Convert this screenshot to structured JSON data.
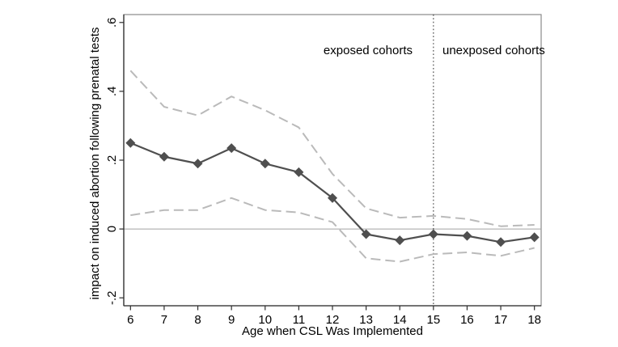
{
  "chart_data": {
    "type": "line",
    "title": "",
    "xlabel": "Age when CSL Was Implemented",
    "ylabel": "impact on induced abortion following prenatal tests",
    "x": [
      6,
      7,
      8,
      9,
      10,
      11,
      12,
      13,
      14,
      15,
      16,
      17,
      18
    ],
    "x_tick_labels": [
      "6",
      "7",
      "8",
      "9",
      "10",
      "11",
      "12",
      "13",
      "14",
      "15",
      "16",
      "17",
      "18"
    ],
    "y_ticks": {
      "labels": [
        ".6",
        ".4",
        ".2",
        "0",
        "-.2"
      ],
      "values": [
        0.6,
        0.4,
        0.2,
        0,
        -0.2
      ]
    },
    "xlim": [
      5.8,
      18.2
    ],
    "ylim": [
      -0.223,
      0.623
    ],
    "grid": false,
    "legend": "none",
    "series": [
      {
        "name": "point-estimate",
        "line": "solid",
        "marker": "diamond",
        "color": "#4f4f4f",
        "values": [
          0.25,
          0.21,
          0.19,
          0.235,
          0.19,
          0.165,
          0.09,
          -0.015,
          -0.033,
          -0.015,
          -0.02,
          -0.038,
          -0.024
        ]
      },
      {
        "name": "upper-confidence-bound",
        "line": "dashed",
        "marker": "none",
        "color": "#bababa",
        "values": [
          0.46,
          0.355,
          0.33,
          0.385,
          0.345,
          0.295,
          0.16,
          0.06,
          0.033,
          0.038,
          0.029,
          0.008,
          0.012
        ]
      },
      {
        "name": "lower-confidence-bound",
        "line": "dashed",
        "marker": "none",
        "color": "#bababa",
        "values": [
          0.04,
          0.055,
          0.055,
          0.09,
          0.055,
          0.048,
          0.02,
          -0.085,
          -0.095,
          -0.073,
          -0.068,
          -0.078,
          -0.055
        ]
      }
    ],
    "reference_lines": [
      {
        "type": "horizontal",
        "value": 0,
        "style": "solid",
        "color": "#a3a3a3"
      },
      {
        "type": "vertical",
        "value": 15,
        "style": "dotted",
        "color": "#3c3c3c"
      }
    ],
    "annotations": [
      {
        "text": "exposed cohorts",
        "x": 14.35,
        "y": 0.52,
        "align": "right"
      },
      {
        "text": "unexposed cohorts",
        "x": 15.25,
        "y": 0.52,
        "align": "left"
      }
    ]
  },
  "colors": {
    "background": "#ffffff",
    "plot_border": "#8a8a8a",
    "axis": "#2e2e2e",
    "text": "#000000"
  }
}
